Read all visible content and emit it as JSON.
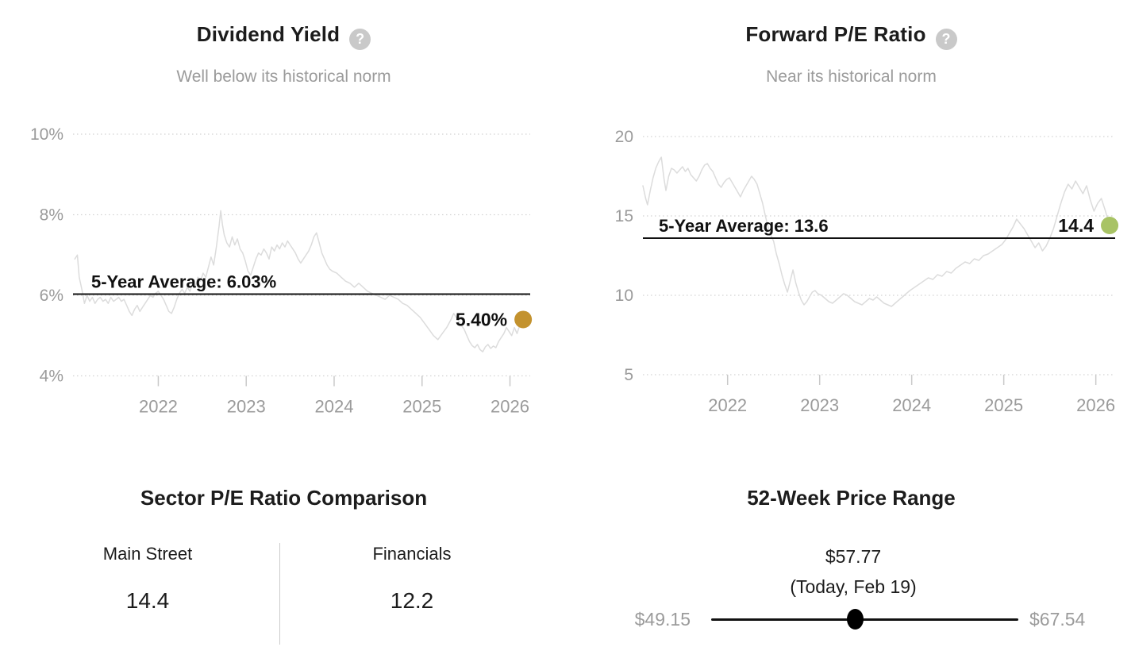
{
  "accent_colors": {
    "dividend_dot": "#c3922e",
    "pe_dot": "#a8c365",
    "line": "#dcdcdc",
    "grid": "#d2d2d2",
    "axis_text": "#9b9b9b",
    "ink": "#111111"
  },
  "chart_data": [
    {
      "type": "line",
      "title": "Dividend Yield",
      "help_icon": "question-mark-icon",
      "subtitle": "Well below its historical norm",
      "legend_position": "none",
      "grid": "dotted-horizontal",
      "line_color": "#dcdcdc",
      "xlim": [
        2021.03,
        2026.23
      ],
      "ylim": [
        4,
        10
      ],
      "yticks": [
        {
          "value": 10,
          "label": "10%"
        },
        {
          "value": 8,
          "label": "8%"
        },
        {
          "value": 6,
          "label": "6%"
        },
        {
          "value": 4,
          "label": "4%"
        }
      ],
      "xticks": [
        {
          "value": 2022,
          "label": "2022"
        },
        {
          "value": 2023,
          "label": "2023"
        },
        {
          "value": 2024,
          "label": "2024"
        },
        {
          "value": 2025,
          "label": "2025"
        },
        {
          "value": 2026,
          "label": "2026"
        }
      ],
      "average_line": {
        "value": 6.03,
        "label": "5-Year Average: 6.03%"
      },
      "last_point": {
        "x": 2026.15,
        "value": 5.4,
        "label": "5.40%",
        "dot_color": "#c3922e"
      },
      "x": [
        2021.05,
        2021.08,
        2021.1,
        2021.13,
        2021.16,
        2021.19,
        2021.22,
        2021.25,
        2021.28,
        2021.31,
        2021.34,
        2021.37,
        2021.4,
        2021.43,
        2021.46,
        2021.49,
        2021.52,
        2021.55,
        2021.58,
        2021.61,
        2021.64,
        2021.67,
        2021.7,
        2021.73,
        2021.76,
        2021.79,
        2021.82,
        2021.85,
        2021.88,
        2021.91,
        2021.94,
        2021.97,
        2022.0,
        2022.03,
        2022.06,
        2022.09,
        2022.12,
        2022.15,
        2022.18,
        2022.21,
        2022.24,
        2022.27,
        2022.3,
        2022.33,
        2022.36,
        2022.39,
        2022.42,
        2022.45,
        2022.48,
        2022.51,
        2022.54,
        2022.57,
        2022.6,
        2022.63,
        2022.66,
        2022.69,
        2022.71,
        2022.73,
        2022.75,
        2022.78,
        2022.81,
        2022.84,
        2022.87,
        2022.9,
        2022.93,
        2022.96,
        2022.99,
        2023.02,
        2023.05,
        2023.08,
        2023.11,
        2023.14,
        2023.17,
        2023.2,
        2023.23,
        2023.26,
        2023.29,
        2023.32,
        2023.35,
        2023.38,
        2023.41,
        2023.44,
        2023.47,
        2023.5,
        2023.53,
        2023.56,
        2023.59,
        2023.62,
        2023.65,
        2023.68,
        2023.71,
        2023.74,
        2023.77,
        2023.8,
        2023.83,
        2023.86,
        2023.89,
        2023.92,
        2023.95,
        2023.98,
        2024.03,
        2024.08,
        2024.13,
        2024.18,
        2024.23,
        2024.28,
        2024.33,
        2024.38,
        2024.43,
        2024.48,
        2024.53,
        2024.58,
        2024.63,
        2024.68,
        2024.73,
        2024.78,
        2024.83,
        2024.88,
        2024.93,
        2024.98,
        2025.03,
        2025.08,
        2025.13,
        2025.18,
        2025.23,
        2025.28,
        2025.33,
        2025.36,
        2025.39,
        2025.42,
        2025.45,
        2025.48,
        2025.51,
        2025.54,
        2025.57,
        2025.6,
        2025.63,
        2025.66,
        2025.69,
        2025.72,
        2025.75,
        2025.78,
        2025.81,
        2025.84,
        2025.87,
        2025.9,
        2025.93,
        2025.96,
        2025.99,
        2026.02,
        2026.05,
        2026.08,
        2026.11,
        2026.15
      ],
      "y": [
        6.9,
        7.0,
        6.45,
        6.15,
        5.8,
        6.0,
        5.85,
        5.95,
        5.8,
        5.9,
        5.95,
        5.85,
        5.9,
        5.8,
        5.95,
        5.85,
        5.9,
        5.95,
        5.85,
        5.9,
        5.75,
        5.6,
        5.5,
        5.65,
        5.75,
        5.6,
        5.7,
        5.8,
        5.9,
        6.0,
        5.95,
        6.05,
        6.1,
        6.0,
        5.9,
        5.75,
        5.6,
        5.55,
        5.7,
        5.9,
        6.05,
        6.15,
        6.05,
        6.2,
        6.1,
        6.3,
        6.2,
        6.45,
        6.35,
        6.55,
        6.45,
        6.7,
        6.95,
        6.75,
        7.2,
        7.7,
        8.1,
        7.75,
        7.5,
        7.3,
        7.2,
        7.45,
        7.25,
        7.4,
        7.15,
        7.05,
        6.85,
        6.6,
        6.5,
        6.7,
        6.9,
        7.05,
        7.0,
        7.15,
        7.05,
        6.9,
        7.2,
        7.1,
        7.25,
        7.15,
        7.3,
        7.2,
        7.35,
        7.25,
        7.15,
        7.05,
        6.9,
        6.8,
        6.9,
        7.0,
        7.1,
        7.25,
        7.45,
        7.55,
        7.3,
        7.05,
        6.9,
        6.75,
        6.65,
        6.6,
        6.55,
        6.45,
        6.35,
        6.3,
        6.2,
        6.3,
        6.2,
        6.1,
        6.05,
        6.0,
        5.95,
        5.9,
        6.0,
        5.95,
        5.9,
        5.8,
        5.75,
        5.65,
        5.55,
        5.45,
        5.3,
        5.15,
        5.0,
        4.9,
        5.05,
        5.2,
        5.4,
        5.55,
        5.45,
        5.35,
        5.25,
        5.15,
        5.0,
        4.85,
        4.75,
        4.7,
        4.78,
        4.65,
        4.6,
        4.72,
        4.78,
        4.68,
        4.74,
        4.7,
        4.85,
        4.95,
        5.05,
        5.2,
        5.1,
        5.0,
        5.2,
        5.05,
        5.25,
        5.4
      ]
    },
    {
      "type": "line",
      "title": "Forward P/E Ratio",
      "help_icon": "question-mark-icon",
      "subtitle": "Near its historical norm",
      "legend_position": "none",
      "grid": "dotted-horizontal",
      "line_color": "#dcdcdc",
      "xlim": [
        2021.08,
        2026.21
      ],
      "ylim": [
        5,
        20
      ],
      "yticks": [
        {
          "value": 20,
          "label": "20"
        },
        {
          "value": 15,
          "label": "15"
        },
        {
          "value": 10,
          "label": "10"
        },
        {
          "value": 5,
          "label": "5"
        }
      ],
      "xticks": [
        {
          "value": 2022,
          "label": "2022"
        },
        {
          "value": 2023,
          "label": "2023"
        },
        {
          "value": 2024,
          "label": "2024"
        },
        {
          "value": 2025,
          "label": "2025"
        },
        {
          "value": 2026,
          "label": "2026"
        }
      ],
      "average_line": {
        "value": 13.6,
        "label": "5-Year Average: 13.6"
      },
      "last_point": {
        "x": 2026.15,
        "value": 14.4,
        "label": "14.4",
        "dot_color": "#a8c365"
      },
      "x": [
        2021.08,
        2021.11,
        2021.13,
        2021.16,
        2021.19,
        2021.22,
        2021.25,
        2021.28,
        2021.31,
        2021.33,
        2021.36,
        2021.39,
        2021.42,
        2021.45,
        2021.48,
        2021.51,
        2021.54,
        2021.57,
        2021.6,
        2021.63,
        2021.66,
        2021.69,
        2021.72,
        2021.75,
        2021.78,
        2021.81,
        2021.84,
        2021.87,
        2021.9,
        2021.93,
        2021.96,
        2021.99,
        2022.02,
        2022.05,
        2022.08,
        2022.11,
        2022.14,
        2022.17,
        2022.2,
        2022.23,
        2022.26,
        2022.29,
        2022.32,
        2022.35,
        2022.38,
        2022.41,
        2022.44,
        2022.47,
        2022.5,
        2022.53,
        2022.56,
        2022.59,
        2022.62,
        2022.65,
        2022.68,
        2022.71,
        2022.74,
        2022.77,
        2022.8,
        2022.83,
        2022.86,
        2022.89,
        2022.92,
        2022.95,
        2022.98,
        2023.02,
        2023.06,
        2023.1,
        2023.14,
        2023.18,
        2023.22,
        2023.26,
        2023.3,
        2023.34,
        2023.38,
        2023.42,
        2023.46,
        2023.5,
        2023.54,
        2023.58,
        2023.62,
        2023.66,
        2023.7,
        2023.74,
        2023.78,
        2023.82,
        2023.86,
        2023.9,
        2023.94,
        2023.98,
        2024.03,
        2024.08,
        2024.13,
        2024.18,
        2024.23,
        2024.28,
        2024.33,
        2024.38,
        2024.43,
        2024.48,
        2024.53,
        2024.58,
        2024.63,
        2024.68,
        2024.73,
        2024.78,
        2024.83,
        2024.88,
        2024.93,
        2024.98,
        2025.02,
        2025.06,
        2025.1,
        2025.14,
        2025.18,
        2025.22,
        2025.26,
        2025.3,
        2025.34,
        2025.38,
        2025.42,
        2025.46,
        2025.5,
        2025.54,
        2025.58,
        2025.62,
        2025.66,
        2025.7,
        2025.74,
        2025.78,
        2025.82,
        2025.86,
        2025.9,
        2025.94,
        2025.98,
        2026.02,
        2026.06,
        2026.1,
        2026.13,
        2026.15
      ],
      "y": [
        16.9,
        16.1,
        15.7,
        16.6,
        17.4,
        18.0,
        18.4,
        18.7,
        17.3,
        16.6,
        17.5,
        18.0,
        17.9,
        17.7,
        17.9,
        18.1,
        17.8,
        18.0,
        17.6,
        17.4,
        17.2,
        17.5,
        17.9,
        18.2,
        18.3,
        18.0,
        17.8,
        17.4,
        17.0,
        16.8,
        17.1,
        17.3,
        17.4,
        17.1,
        16.8,
        16.5,
        16.2,
        16.6,
        16.9,
        17.2,
        17.5,
        17.3,
        17.0,
        16.4,
        15.8,
        15.0,
        14.3,
        13.8,
        13.4,
        12.6,
        12.0,
        11.3,
        10.7,
        10.2,
        10.9,
        11.6,
        10.8,
        10.2,
        9.7,
        9.4,
        9.6,
        9.9,
        10.2,
        10.3,
        10.1,
        10.0,
        9.8,
        9.6,
        9.5,
        9.7,
        9.9,
        10.1,
        10.0,
        9.8,
        9.6,
        9.5,
        9.4,
        9.6,
        9.8,
        9.7,
        9.9,
        9.7,
        9.5,
        9.4,
        9.3,
        9.5,
        9.7,
        9.9,
        10.1,
        10.3,
        10.5,
        10.7,
        10.9,
        11.1,
        11.0,
        11.3,
        11.2,
        11.5,
        11.4,
        11.7,
        11.9,
        12.1,
        12.0,
        12.3,
        12.2,
        12.5,
        12.6,
        12.8,
        13.0,
        13.2,
        13.5,
        13.9,
        14.3,
        14.8,
        14.5,
        14.2,
        13.8,
        13.4,
        13.0,
        13.3,
        12.8,
        13.1,
        13.6,
        14.2,
        15.0,
        15.8,
        16.5,
        17.0,
        16.7,
        17.2,
        16.8,
        16.4,
        16.9,
        16.0,
        15.3,
        15.8,
        16.1,
        15.4,
        14.8,
        14.4
      ]
    },
    {
      "type": "table",
      "title": "Sector P/E Ratio Comparison",
      "columns": [
        {
          "label": "Main Street",
          "value": "14.4"
        },
        {
          "label": "Financials",
          "value": "12.2"
        }
      ]
    },
    {
      "type": "range",
      "title": "52-Week Price Range",
      "low": 49.15,
      "high": 67.54,
      "current": 57.77,
      "low_label": "$49.15",
      "high_label": "$67.54",
      "current_label": "$57.77",
      "current_sublabel": "(Today, Feb 19)"
    }
  ]
}
